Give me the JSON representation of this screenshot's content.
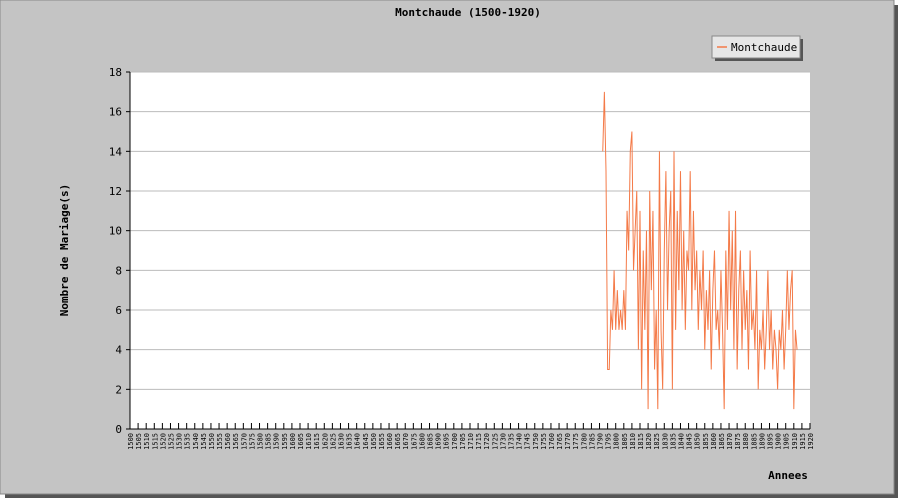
{
  "chart_data": {
    "type": "line",
    "title": "Montchaude (1500-1920)",
    "xlabel": "Annees",
    "ylabel": "Nombre de Mariage(s)",
    "x": [
      1792,
      1793,
      1794,
      1795,
      1796,
      1797,
      1798,
      1799,
      1800,
      1801,
      1802,
      1803,
      1804,
      1805,
      1806,
      1807,
      1808,
      1809,
      1810,
      1811,
      1812,
      1813,
      1814,
      1815,
      1816,
      1817,
      1818,
      1819,
      1820,
      1821,
      1822,
      1823,
      1824,
      1825,
      1826,
      1827,
      1828,
      1829,
      1830,
      1831,
      1832,
      1833,
      1834,
      1835,
      1836,
      1837,
      1838,
      1839,
      1840,
      1841,
      1842,
      1843,
      1844,
      1845,
      1846,
      1847,
      1848,
      1849,
      1850,
      1851,
      1852,
      1853,
      1854,
      1855,
      1856,
      1857,
      1858,
      1859,
      1860,
      1861,
      1862,
      1863,
      1864,
      1865,
      1866,
      1867,
      1868,
      1869,
      1870,
      1871,
      1872,
      1873,
      1874,
      1875,
      1876,
      1877,
      1878,
      1879,
      1880,
      1881,
      1882,
      1883,
      1884,
      1885,
      1886,
      1887,
      1888,
      1889,
      1890,
      1891,
      1892,
      1893,
      1894,
      1895,
      1896,
      1897,
      1898,
      1899,
      1900,
      1901,
      1902,
      1903,
      1904,
      1905,
      1906,
      1907,
      1908,
      1909,
      1910,
      1911,
      1912
    ],
    "series": [
      {
        "name": "Montchaude",
        "color": "#f47a48",
        "values": [
          14,
          17,
          13,
          3,
          3,
          6,
          5,
          8,
          5,
          7,
          5,
          6,
          5,
          7,
          5,
          11,
          9,
          14,
          15,
          8,
          10,
          12,
          4,
          11,
          2,
          9,
          5,
          10,
          1,
          12,
          7,
          11,
          3,
          6,
          1,
          14,
          5,
          2,
          9,
          13,
          6,
          10,
          12,
          2,
          14,
          5,
          11,
          7,
          13,
          6,
          10,
          5,
          9,
          8,
          13,
          6,
          11,
          7,
          9,
          5,
          8,
          6,
          9,
          4,
          7,
          5,
          8,
          3,
          7,
          9,
          5,
          6,
          4,
          8,
          5,
          1,
          9,
          5,
          11,
          6,
          10,
          4,
          11,
          3,
          7,
          9,
          4,
          8,
          5,
          7,
          3,
          9,
          5,
          6,
          4,
          8,
          2,
          5,
          4,
          6,
          3,
          5,
          8,
          4,
          6,
          3,
          5,
          4,
          2,
          5,
          4,
          6,
          3,
          5,
          8,
          5,
          7,
          8,
          1,
          5,
          4
        ]
      }
    ],
    "xlim": [
      1500,
      1920
    ],
    "ylim": [
      0,
      18
    ],
    "xticks": [
      1500,
      1505,
      1510,
      1515,
      1520,
      1525,
      1530,
      1535,
      1540,
      1545,
      1550,
      1555,
      1560,
      1565,
      1570,
      1575,
      1580,
      1585,
      1590,
      1595,
      1600,
      1605,
      1610,
      1615,
      1620,
      1625,
      1630,
      1635,
      1640,
      1645,
      1650,
      1655,
      1660,
      1665,
      1670,
      1675,
      1680,
      1685,
      1690,
      1695,
      1700,
      1705,
      1710,
      1715,
      1720,
      1725,
      1730,
      1735,
      1740,
      1745,
      1750,
      1755,
      1760,
      1765,
      1770,
      1775,
      1780,
      1785,
      1790,
      1795,
      1800,
      1805,
      1810,
      1815,
      1820,
      1825,
      1830,
      1835,
      1840,
      1845,
      1850,
      1855,
      1860,
      1865,
      1870,
      1875,
      1880,
      1885,
      1890,
      1895,
      1900,
      1905,
      1910,
      1915,
      1920
    ],
    "yticks": [
      0,
      2,
      4,
      6,
      8,
      10,
      12,
      14,
      16,
      18
    ],
    "grid": true,
    "legend": "upper right"
  }
}
